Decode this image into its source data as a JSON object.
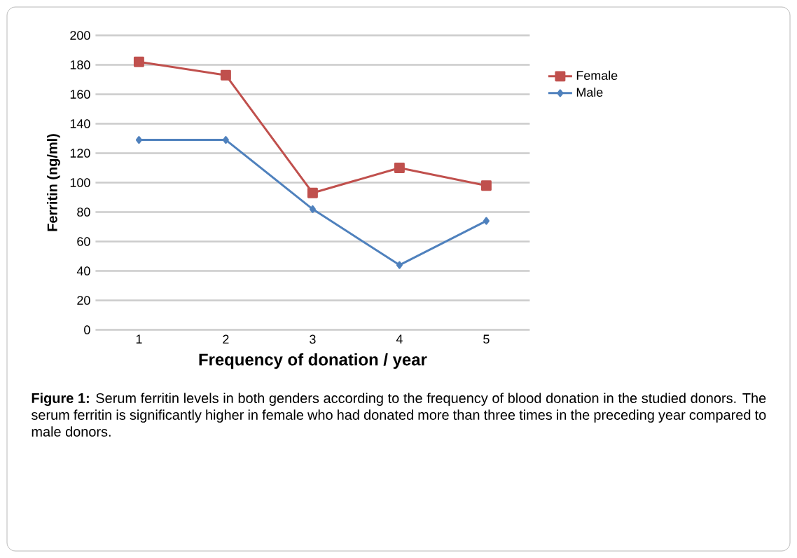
{
  "chart_data": {
    "type": "line",
    "xlabel": "Frequency of donation / year",
    "ylabel": "Ferritin (ng/ml)",
    "categories": [
      "1",
      "2",
      "3",
      "4",
      "5"
    ],
    "series": [
      {
        "name": "Female",
        "color": "#c0504d",
        "marker": "square",
        "values": [
          182,
          173,
          93,
          110,
          98
        ]
      },
      {
        "name": "Male",
        "color": "#4f81bd",
        "marker": "diamond",
        "values": [
          129,
          129,
          82,
          44,
          74
        ]
      }
    ],
    "ylim": [
      0,
      200
    ],
    "yticks": [
      0,
      20,
      40,
      60,
      80,
      100,
      120,
      140,
      160,
      180,
      200
    ],
    "grid": "y",
    "legend": "top right",
    "annotations": [
      "**Figure 1:** Serum ferritin levels in both genders according to the frequency of blood donation in the studied donors. The serum ferritin is significantly higher in female who had donated more than three times in the preceding year compared to male donors."
    ]
  }
}
